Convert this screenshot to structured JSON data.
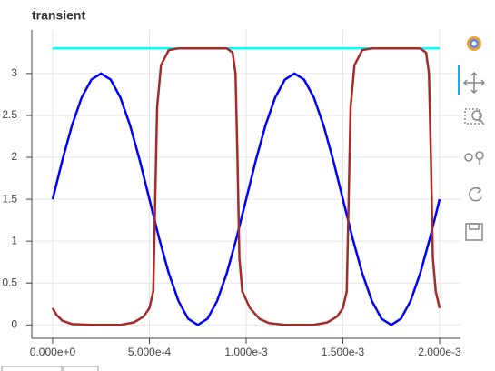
{
  "chart_data": {
    "type": "line",
    "title": "transient",
    "xlim": [
      -0.000108,
      0.002108
    ],
    "xticks": [
      {
        "value": 0,
        "label": "0.000e+0"
      },
      {
        "value": 0.0005,
        "label": "5.000e-4"
      },
      {
        "value": 0.001,
        "label": "1.000e-3"
      },
      {
        "value": 0.0015,
        "label": "1.500e-3"
      },
      {
        "value": 0.002,
        "label": "2.000e-3"
      }
    ],
    "ylim": [
      -0.16,
      3.52
    ],
    "yticks": [
      0,
      0.5,
      1,
      1.5,
      2,
      2.5,
      3
    ],
    "grid": true,
    "series": [
      {
        "color": "#00ffff",
        "x": [
          0,
          0.002
        ],
        "values": [
          3.3,
          3.3
        ]
      },
      {
        "color": "#0000ff",
        "x": [
          0,
          5e-05,
          0.0001,
          0.00015,
          0.0002,
          0.00025,
          0.0003,
          0.00035,
          0.0004,
          0.00045,
          0.0005,
          0.00055,
          0.0006,
          0.00065,
          0.0007,
          0.00075,
          0.0008,
          0.00085,
          0.0009,
          0.00095,
          0.001,
          0.00105,
          0.0011,
          0.00115,
          0.0012,
          0.00125,
          0.0013,
          0.00135,
          0.0014,
          0.00145,
          0.0015,
          0.00155,
          0.0016,
          0.00165,
          0.0017,
          0.00175,
          0.0018,
          0.00185,
          0.0019,
          0.00195,
          0.002
        ],
        "values": [
          1.5,
          1.964,
          2.382,
          2.714,
          2.927,
          3,
          2.927,
          2.714,
          2.382,
          1.964,
          1.5,
          1.036,
          0.618,
          0.286,
          0.073,
          0,
          0.073,
          0.286,
          0.618,
          1.036,
          1.5,
          1.964,
          2.382,
          2.714,
          2.927,
          3,
          2.927,
          2.714,
          2.382,
          1.964,
          1.5,
          1.036,
          0.618,
          0.286,
          0.073,
          0,
          0.073,
          0.286,
          0.618,
          1.036,
          1.5
        ]
      },
      {
        "color": "#a52a2a",
        "x": [
          0,
          2e-05,
          5e-05,
          0.0001,
          0.0002,
          0.00035,
          0.00042,
          0.00047,
          0.0005,
          0.00052,
          0.00053,
          0.00054,
          0.00056,
          0.0006,
          0.00065,
          0.0009,
          0.00093,
          0.000945,
          0.000955,
          0.000965,
          0.00098,
          0.00102,
          0.00107,
          0.00112,
          0.0012,
          0.00135,
          0.00142,
          0.00147,
          0.0015,
          0.00152,
          0.00153,
          0.00154,
          0.00156,
          0.0016,
          0.00165,
          0.0019,
          0.00193,
          0.001945,
          0.001955,
          0.001965,
          0.00198,
          0.002
        ],
        "values": [
          0.2,
          0.12,
          0.05,
          0.01,
          0,
          0,
          0.03,
          0.1,
          0.2,
          0.4,
          1.5,
          2.6,
          3.1,
          3.28,
          3.3,
          3.3,
          3.25,
          3.0,
          2.0,
          0.8,
          0.4,
          0.2,
          0.07,
          0.02,
          0,
          0,
          0.03,
          0.1,
          0.2,
          0.4,
          1.5,
          2.6,
          3.1,
          3.28,
          3.3,
          3.3,
          3.25,
          3.0,
          2.0,
          0.8,
          0.4,
          0.2
        ]
      }
    ]
  }
}
